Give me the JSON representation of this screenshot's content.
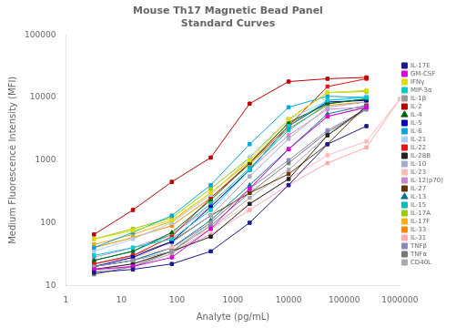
{
  "chart_data": {
    "type": "line",
    "title": "Mouse Th17 Magnetic Bead Panel\nStandard Curves",
    "x_label": "Analyte (pg/mL)",
    "y_label": "Medium Fluorescence Intensity (MFI)",
    "log": true,
    "xlim": [
      1,
      1000000
    ],
    "ylim": [
      10,
      100000
    ],
    "xticks": [
      1,
      10,
      100,
      1000,
      10000,
      100000,
      1000000
    ],
    "yticks": [
      10,
      100,
      1000,
      10000,
      100000
    ],
    "grid": false,
    "legend": "right",
    "series": [
      {
        "name": "IL-17E",
        "color": "#1a1a8c",
        "marker": "square",
        "x": [
          3.2,
          16,
          80,
          400,
          2000,
          10000,
          50000,
          250000
        ],
        "values": [
          16,
          18,
          22,
          35,
          100,
          400,
          1800,
          3500
        ]
      },
      {
        "name": "GM-CSF",
        "color": "#dd00dd",
        "marker": "square",
        "x": [
          3.2,
          16,
          80,
          400,
          2000,
          10000,
          50000,
          250000
        ],
        "values": [
          18,
          20,
          28,
          80,
          350,
          1500,
          5000,
          7000
        ]
      },
      {
        "name": "IFNγ",
        "color": "#dddd00",
        "marker": "square",
        "x": [
          3.2,
          16,
          80,
          400,
          2000,
          10000,
          50000,
          250000
        ],
        "values": [
          55,
          75,
          110,
          300,
          1000,
          4500,
          12000,
          13000
        ]
      },
      {
        "name": "MIP-3α",
        "color": "#00cccc",
        "marker": "square",
        "x": [
          3.2,
          16,
          80,
          400,
          2000,
          10000,
          50000,
          250000
        ],
        "values": [
          30,
          40,
          55,
          160,
          700,
          3500,
          9000,
          10000
        ]
      },
      {
        "name": "IL-1β",
        "color": "#999999",
        "marker": "square",
        "x": [
          3.2,
          16,
          80,
          400,
          2000,
          10000,
          50000,
          250000
        ],
        "values": [
          20,
          25,
          35,
          100,
          350,
          1500,
          5000,
          7000
        ]
      },
      {
        "name": "IL-2",
        "color": "#bb0000",
        "marker": "square",
        "x": [
          3.2,
          16,
          80,
          400,
          2000,
          10000,
          50000,
          250000
        ],
        "values": [
          65,
          160,
          450,
          1100,
          8000,
          18000,
          20000,
          21000
        ]
      },
      {
        "name": "IL-4",
        "color": "#006600",
        "marker": "triangle",
        "x": [
          3.2,
          16,
          80,
          400,
          2000,
          10000,
          50000,
          250000
        ],
        "values": [
          25,
          35,
          70,
          230,
          900,
          4000,
          8000,
          9500
        ]
      },
      {
        "name": "IL-5",
        "color": "#0000bb",
        "marker": "square",
        "x": [
          3.2,
          16,
          80,
          400,
          2000,
          10000,
          50000,
          250000
        ],
        "values": [
          20,
          28,
          50,
          180,
          700,
          3500,
          8500,
          9000
        ]
      },
      {
        "name": "IL-6",
        "color": "#00aadd",
        "marker": "square",
        "x": [
          3.2,
          16,
          80,
          400,
          2000,
          10000,
          50000,
          250000
        ],
        "values": [
          40,
          70,
          130,
          400,
          1800,
          7000,
          10500,
          10000
        ]
      },
      {
        "name": "IL-21",
        "color": "#aaccff",
        "marker": "square",
        "x": [
          3.2,
          16,
          80,
          400,
          2000,
          10000,
          50000,
          250000
        ],
        "values": [
          35,
          55,
          100,
          280,
          1100,
          4500,
          9000,
          10500
        ]
      },
      {
        "name": "IL-22",
        "color": "#ee1111",
        "marker": "square",
        "x": [
          3.2,
          16,
          80,
          400,
          2000,
          10000,
          50000,
          250000
        ],
        "values": [
          22,
          30,
          60,
          250,
          900,
          3500,
          15000,
          20000
        ]
      },
      {
        "name": "IL-28B",
        "color": "#222222",
        "marker": "square",
        "x": [
          3.2,
          16,
          80,
          400,
          2000,
          10000,
          50000,
          250000
        ],
        "values": [
          18,
          22,
          35,
          60,
          200,
          500,
          2500,
          7000
        ]
      },
      {
        "name": "IL-10",
        "color": "#aaaacc",
        "marker": "square",
        "x": [
          3.2,
          16,
          80,
          400,
          2000,
          10000,
          50000,
          250000
        ],
        "values": [
          22,
          30,
          48,
          130,
          550,
          2200,
          7000,
          8500
        ]
      },
      {
        "name": "IL-23",
        "color": "#ffbbbb",
        "marker": "square",
        "x": [
          3.2,
          16,
          80,
          400,
          2000,
          10000,
          50000,
          250000,
          1000000
        ],
        "values": [
          22,
          28,
          40,
          80,
          200,
          500,
          1200,
          2000,
          9500
        ]
      },
      {
        "name": "IL-12(p70)",
        "color": "#cc88cc",
        "marker": "square",
        "x": [
          3.2,
          16,
          80,
          400,
          2000,
          10000,
          50000,
          250000
        ],
        "values": [
          28,
          40,
          65,
          180,
          700,
          2500,
          6500,
          7000
        ]
      },
      {
        "name": "IL-27",
        "color": "#663300",
        "marker": "square",
        "x": [
          3.2,
          16,
          80,
          400,
          2000,
          10000,
          50000,
          250000
        ],
        "values": [
          22,
          30,
          50,
          130,
          300,
          600,
          1800,
          7500
        ]
      },
      {
        "name": "IL-13",
        "color": "#007799",
        "marker": "triangle",
        "x": [
          3.2,
          16,
          80,
          400,
          2000,
          10000,
          50000,
          250000
        ],
        "values": [
          20,
          25,
          40,
          110,
          400,
          1500,
          5500,
          7500
        ]
      },
      {
        "name": "IL-15",
        "color": "#00bbbb",
        "marker": "square",
        "x": [
          3.2,
          16,
          80,
          400,
          2000,
          10000,
          50000,
          250000
        ],
        "values": [
          25,
          35,
          65,
          200,
          750,
          3000,
          8000,
          9500
        ]
      },
      {
        "name": "IL-17A",
        "color": "#99cc00",
        "marker": "square",
        "x": [
          3.2,
          16,
          80,
          400,
          2000,
          10000,
          50000,
          250000
        ],
        "values": [
          55,
          80,
          120,
          350,
          1100,
          4500,
          12000,
          12500
        ]
      },
      {
        "name": "IL-17F",
        "color": "#ffaa00",
        "marker": "square",
        "x": [
          3.2,
          16,
          80,
          400,
          2000,
          10000,
          50000,
          250000
        ],
        "values": [
          45,
          65,
          105,
          300,
          950,
          3800,
          8000,
          9500
        ]
      },
      {
        "name": "IL-33",
        "color": "#ff8800",
        "marker": "square",
        "x": [
          3.2,
          16,
          80,
          400,
          2000,
          10000,
          50000,
          250000
        ],
        "values": [
          40,
          58,
          90,
          250,
          850,
          3200,
          7500,
          8500
        ]
      },
      {
        "name": "IL-31",
        "color": "#ffaaaa",
        "marker": "square",
        "x": [
          3.2,
          16,
          80,
          400,
          2000,
          10000,
          50000,
          250000,
          1000000
        ],
        "values": [
          18,
          22,
          35,
          65,
          160,
          400,
          900,
          1600,
          9500
        ]
      },
      {
        "name": "TNFβ",
        "color": "#8888bb",
        "marker": "square",
        "x": [
          3.2,
          16,
          80,
          400,
          2000,
          10000,
          50000,
          250000
        ],
        "values": [
          20,
          25,
          40,
          100,
          350,
          1000,
          3000,
          6500
        ]
      },
      {
        "name": "TNFα",
        "color": "#777777",
        "marker": "square",
        "x": [
          3.2,
          16,
          80,
          400,
          2000,
          10000,
          50000,
          250000
        ],
        "values": [
          15,
          20,
          35,
          90,
          300,
          900,
          2800,
          6500
        ]
      },
      {
        "name": "CD40L",
        "color": "#aaaaaa",
        "marker": "square",
        "x": [
          3.2,
          16,
          80,
          400,
          2000,
          10000,
          50000,
          250000
        ],
        "values": [
          17,
          20,
          32,
          80,
          250,
          700,
          2500,
          6500
        ]
      }
    ]
  }
}
